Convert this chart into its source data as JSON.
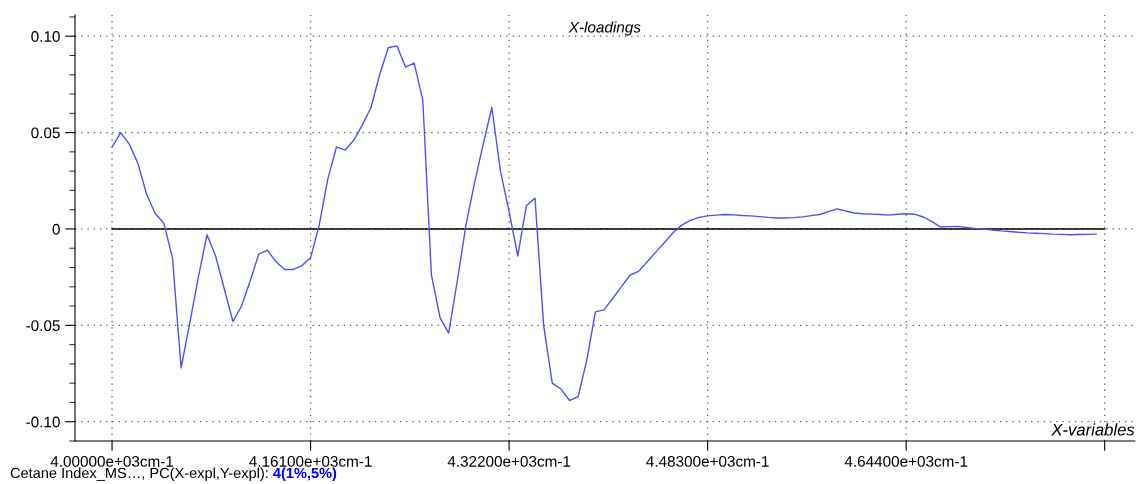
{
  "chart_data": {
    "type": "line",
    "title": "X-loadings",
    "xlabel": "X-variables",
    "annotations": [
      "Cetane Index_MS…, PC(X-expl,Y-expl):",
      "4(1%,5%)"
    ],
    "categories": [
      "4.00000e+03cm-1",
      null,
      null,
      null,
      null,
      null,
      null,
      null,
      null,
      null,
      null,
      null,
      null,
      null,
      null,
      null,
      null,
      null,
      null,
      null,
      null,
      null,
      null,
      "4.16100e+03cm-1",
      null,
      null,
      null,
      null,
      null,
      null,
      null,
      null,
      null,
      null,
      null,
      null,
      null,
      null,
      null,
      null,
      null,
      null,
      null,
      null,
      null,
      null,
      "4.32200e+03cm-1",
      null,
      null,
      null,
      null,
      null,
      null,
      null,
      null,
      null,
      null,
      null,
      null,
      null,
      null,
      null,
      null,
      null,
      null,
      null,
      null,
      null,
      null,
      "4.48300e+03cm-1",
      null,
      null,
      null,
      null,
      null,
      null,
      null,
      null,
      null,
      null,
      null,
      null,
      null,
      null,
      null,
      null,
      null,
      null,
      null,
      null,
      null,
      null,
      "4.64400e+03cm-1",
      null,
      null,
      null,
      null,
      null,
      null,
      null,
      null,
      null,
      null,
      null,
      null,
      null,
      null,
      null,
      null,
      null,
      null,
      null,
      null,
      null,
      null,
      null
    ],
    "series": [
      {
        "color": "#4f4fff",
        "values": [
          0.0425,
          0.05,
          0.044,
          0.034,
          0.018,
          0.008,
          0.003,
          -0.015,
          -0.072,
          -0.049,
          -0.025,
          -0.003,
          -0.014,
          -0.031,
          -0.048,
          -0.04,
          -0.027,
          -0.013,
          -0.011,
          -0.017,
          -0.021,
          -0.021,
          -0.019,
          -0.015,
          0.002,
          0.026,
          0.0425,
          0.041,
          0.046,
          0.054,
          0.063,
          0.08,
          0.094,
          0.095,
          0.084,
          0.086,
          0.067,
          -0.024,
          -0.046,
          -0.054,
          -0.027,
          0.002,
          0.024,
          0.044,
          0.063,
          0.03,
          0.009,
          -0.014,
          0.012,
          0.016,
          -0.05,
          -0.08,
          -0.083,
          -0.089,
          -0.087,
          -0.068,
          -0.043,
          -0.042,
          -0.036,
          -0.03,
          -0.024,
          -0.022,
          -0.017,
          -0.012,
          -0.007,
          -0.002,
          0.002,
          0.0045,
          0.006,
          0.0068,
          0.0072,
          0.0075,
          0.0073,
          0.007,
          0.0068,
          0.0064,
          0.006,
          0.0057,
          0.0057,
          0.0059,
          0.0063,
          0.0069,
          0.0075,
          0.009,
          0.0104,
          0.0093,
          0.0083,
          0.0079,
          0.0077,
          0.0075,
          0.0072,
          0.0076,
          0.0079,
          0.0076,
          0.0062,
          0.0038,
          0.001,
          0.0012,
          0.0013,
          0.0008,
          0.0003,
          -0.0001,
          -0.0006,
          -0.001,
          -0.0013,
          -0.0017,
          -0.002,
          -0.0022,
          -0.0024,
          -0.0027,
          -0.0028,
          -0.003,
          -0.0029,
          -0.0028,
          -0.0027,
          null
        ]
      }
    ],
    "ylim": [
      -0.11,
      0.111
    ],
    "yticks": [
      {
        "value": -0.1,
        "label": "-0.10"
      },
      {
        "value": -0.05,
        "label": "-0.05"
      },
      0,
      {
        "value": 0.05,
        "label": "0.05"
      },
      {
        "value": 0.1,
        "label": "0.10"
      }
    ],
    "ref_lines": [
      {
        "axis": "y",
        "value": 0,
        "color": "#000000"
      }
    ],
    "grid": true,
    "line_style": "solid",
    "marker": "none"
  }
}
